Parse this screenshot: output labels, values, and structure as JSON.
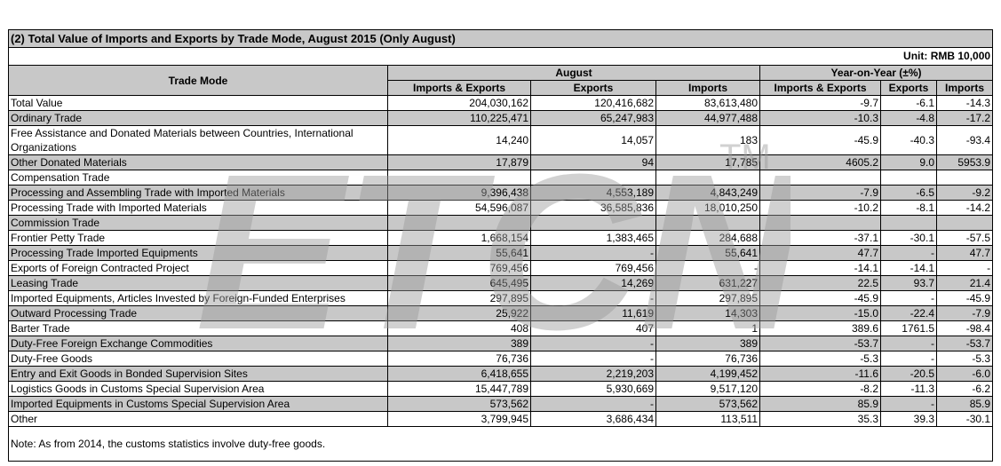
{
  "title": "(2) Total Value of Imports and Exports by Trade Mode, August 2015 (Only August)",
  "unit": "Unit: RMB 10,000",
  "headers": {
    "trade_mode": "Trade Mode",
    "august": "August",
    "yoy": "Year-on-Year (±%)",
    "sub": [
      "Imports & Exports",
      "Exports",
      "Imports",
      "Imports & Exports",
      "Exports",
      "Imports"
    ]
  },
  "watermark": "ETCN",
  "rows": [
    {
      "label": "Total Value",
      "ie": "204,030,162",
      "ex": "120,416,682",
      "im": "83,613,480",
      "yie": "-9.7",
      "yex": "-6.1",
      "yim": "-14.3"
    },
    {
      "label": "Ordinary Trade",
      "ie": "110,225,471",
      "ex": "65,247,983",
      "im": "44,977,488",
      "yie": "-10.3",
      "yex": "-4.8",
      "yim": "-17.2"
    },
    {
      "label": "Free Assistance and Donated Materials between Countries, International Organizations",
      "ie": "14,240",
      "ex": "14,057",
      "im": "183",
      "yie": "-45.9",
      "yex": "-40.3",
      "yim": "-93.4"
    },
    {
      "label": "Other Donated Materials",
      "ie": "17,879",
      "ex": "94",
      "im": "17,785",
      "yie": "4605.2",
      "yex": "9.0",
      "yim": "5953.9"
    },
    {
      "label": "Compensation Trade",
      "ie": "",
      "ex": "",
      "im": "",
      "yie": "",
      "yex": "",
      "yim": ""
    },
    {
      "label": "Processing and Assembling Trade with Imported Materials",
      "ie": "9,396,438",
      "ex": "4,553,189",
      "im": "4,843,249",
      "yie": "-7.9",
      "yex": "-6.5",
      "yim": "-9.2"
    },
    {
      "label": "Processing Trade with Imported Materials",
      "ie": "54,596,087",
      "ex": "36,585,836",
      "im": "18,010,250",
      "yie": "-10.2",
      "yex": "-8.1",
      "yim": "-14.2"
    },
    {
      "label": "Commission Trade",
      "ie": "",
      "ex": "",
      "im": "",
      "yie": "",
      "yex": "",
      "yim": ""
    },
    {
      "label": "Frontier Petty Trade",
      "ie": "1,668,154",
      "ex": "1,383,465",
      "im": "284,688",
      "yie": "-37.1",
      "yex": "-30.1",
      "yim": "-57.5"
    },
    {
      "label": "Processing Trade Imported Equipments",
      "ie": "55,641",
      "ex": "-",
      "im": "55,641",
      "yie": "47.7",
      "yex": "-",
      "yim": "47.7"
    },
    {
      "label": "Exports of Foreign Contracted Project",
      "ie": "769,456",
      "ex": "769,456",
      "im": "-",
      "yie": "-14.1",
      "yex": "-14.1",
      "yim": "-"
    },
    {
      "label": "Leasing Trade",
      "ie": "645,495",
      "ex": "14,269",
      "im": "631,227",
      "yie": "22.5",
      "yex": "93.7",
      "yim": "21.4"
    },
    {
      "label": "Imported Equipments, Articles Invested by Foreign-Funded Enterprises",
      "ie": "297,895",
      "ex": "-",
      "im": "297,895",
      "yie": "-45.9",
      "yex": "-",
      "yim": "-45.9"
    },
    {
      "label": "Outward Processing Trade",
      "ie": "25,922",
      "ex": "11,619",
      "im": "14,303",
      "yie": "-15.0",
      "yex": "-22.4",
      "yim": "-7.9"
    },
    {
      "label": "Barter Trade",
      "ie": "408",
      "ex": "407",
      "im": "1",
      "yie": "389.6",
      "yex": "1761.5",
      "yim": "-98.4"
    },
    {
      "label": "Duty-Free Foreign Exchange Commodities",
      "ie": "389",
      "ex": "-",
      "im": "389",
      "yie": "-53.7",
      "yex": "-",
      "yim": "-53.7"
    },
    {
      "label": "Duty-Free Goods",
      "ie": "76,736",
      "ex": "-",
      "im": "76,736",
      "yie": "-5.3",
      "yex": "-",
      "yim": "-5.3"
    },
    {
      "label": "Entry and Exit Goods in Bonded Supervision Sites",
      "ie": "6,418,655",
      "ex": "2,219,203",
      "im": "4,199,452",
      "yie": "-11.6",
      "yex": "-20.5",
      "yim": "-6.0"
    },
    {
      "label": "Logistics Goods in Customs Special Supervision Area",
      "ie": "15,447,789",
      "ex": "5,930,669",
      "im": "9,517,120",
      "yie": "-8.2",
      "yex": "-11.3",
      "yim": "-6.2"
    },
    {
      "label": "Imported Equipments in Customs Special Supervision Area",
      "ie": "573,562",
      "ex": "-",
      "im": "573,562",
      "yie": "85.9",
      "yex": "-",
      "yim": "85.9"
    },
    {
      "label": "Other",
      "ie": "3,799,945",
      "ex": "3,686,434",
      "im": "113,511",
      "yie": "35.3",
      "yex": "39.3",
      "yim": "-30.1"
    }
  ],
  "note": "Note: As from 2014, the customs statistics involve duty-free goods."
}
